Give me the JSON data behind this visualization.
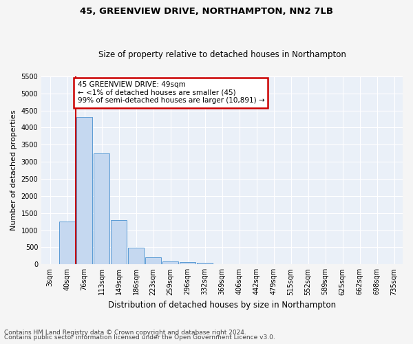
{
  "title1": "45, GREENVIEW DRIVE, NORTHAMPTON, NN2 7LB",
  "title2": "Size of property relative to detached houses in Northampton",
  "xlabel": "Distribution of detached houses by size in Northampton",
  "ylabel": "Number of detached properties",
  "categories": [
    "3sqm",
    "40sqm",
    "76sqm",
    "113sqm",
    "149sqm",
    "186sqm",
    "223sqm",
    "259sqm",
    "296sqm",
    "332sqm",
    "369sqm",
    "406sqm",
    "442sqm",
    "479sqm",
    "515sqm",
    "552sqm",
    "589sqm",
    "625sqm",
    "662sqm",
    "698sqm",
    "735sqm"
  ],
  "bar_values": [
    0,
    1250,
    4300,
    3250,
    1300,
    490,
    210,
    90,
    60,
    50,
    0,
    0,
    0,
    0,
    0,
    0,
    0,
    0,
    0,
    0,
    0
  ],
  "bar_color": "#c5d8f0",
  "bar_edge_color": "#5b9bd5",
  "red_line_color": "#cc0000",
  "annotation_box_text": "45 GREENVIEW DRIVE: 49sqm\n← <1% of detached houses are smaller (45)\n99% of semi-detached houses are larger (10,891) →",
  "annotation_box_color": "#cc0000",
  "ylim_max": 5500,
  "yticks": [
    0,
    500,
    1000,
    1500,
    2000,
    2500,
    3000,
    3500,
    4000,
    4500,
    5000,
    5500
  ],
  "footer1": "Contains HM Land Registry data © Crown copyright and database right 2024.",
  "footer2": "Contains public sector information licensed under the Open Government Licence v3.0.",
  "bg_color": "#eaf0f8",
  "grid_color": "#ffffff",
  "fig_bg": "#f5f5f5"
}
